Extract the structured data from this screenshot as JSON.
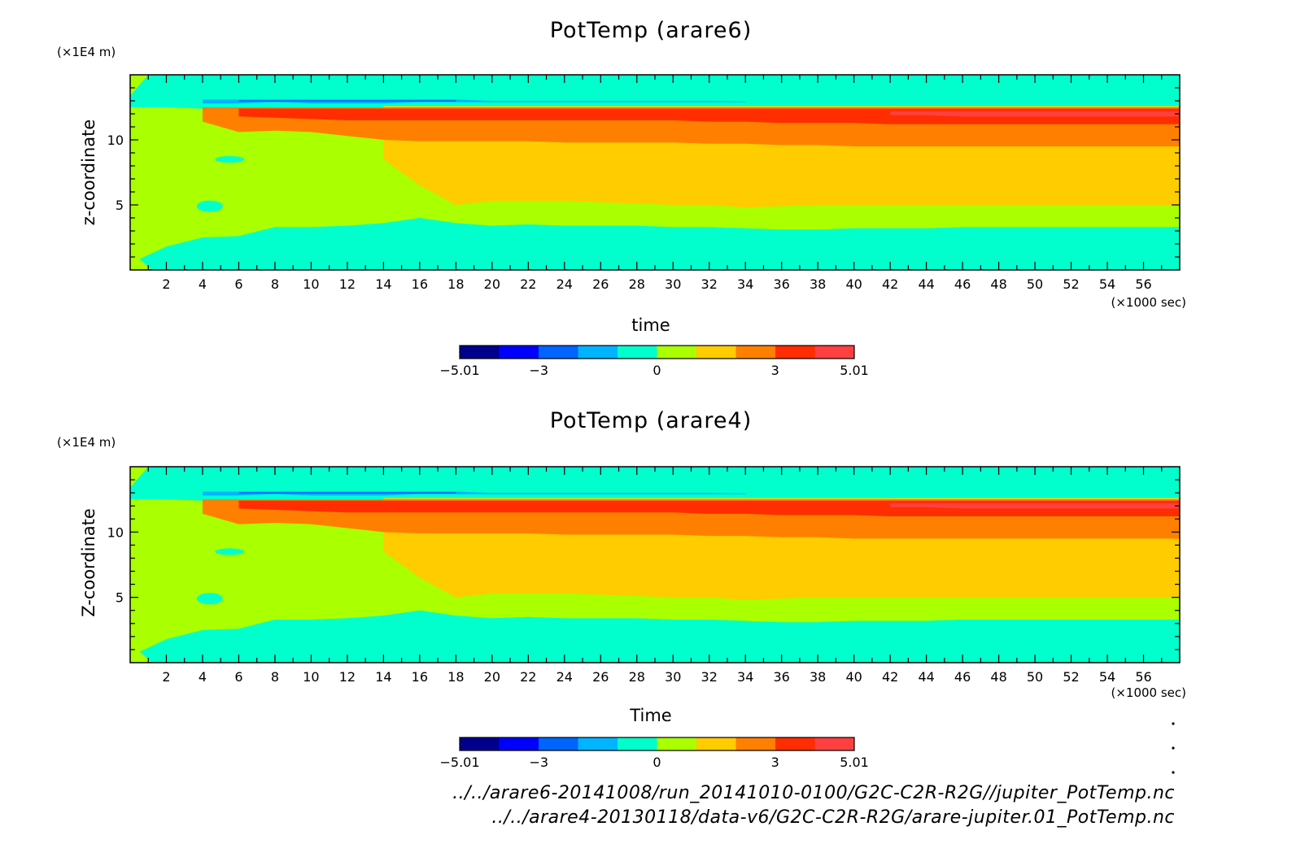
{
  "chart_data": [
    {
      "type": "heatmap",
      "title": "PotTemp (arare6)",
      "xlabel": "time",
      "ylabel": "z-coordinate",
      "x_unit_label": "(×1000 sec)",
      "y_unit_label": "(×1E4 m)",
      "xlim": [
        0,
        58
      ],
      "ylim": [
        0,
        15
      ],
      "x_ticks": [
        2,
        4,
        6,
        8,
        10,
        12,
        14,
        16,
        18,
        20,
        22,
        24,
        26,
        28,
        30,
        32,
        34,
        36,
        38,
        40,
        42,
        44,
        46,
        48,
        50,
        52,
        54,
        56
      ],
      "y_ticks": [
        5,
        10
      ],
      "colorbar": {
        "min": -5.01,
        "max": 5.01,
        "tick_values": [
          -5.01,
          -3,
          0,
          3,
          5.01
        ],
        "tick_labels": [
          "−5.01",
          "−3",
          "0",
          "3",
          "5.01"
        ],
        "colors": [
          "#00008c",
          "#0000ff",
          "#0064ff",
          "#00b4ff",
          "#00ffcc",
          "#aaff00",
          "#ffcc00",
          "#ff8000",
          "#ff2d00",
          "#ff4040"
        ]
      },
      "layers": [
        {
          "level": 0,
          "min": -1,
          "max": 0,
          "color": "#00ffcc",
          "z_top": [
            0.5,
            1.8,
            2.5,
            2.6,
            3.3,
            3.3,
            3.4,
            3.6,
            4.0,
            3.6,
            3.4,
            3.5,
            3.4,
            3.4,
            3.4,
            3.3,
            3.3,
            3.2,
            3.1,
            3.1,
            3.2,
            3.2,
            3.2,
            3.3,
            3.3,
            3.3,
            3.3,
            3.3,
            3.3,
            3.3
          ]
        },
        {
          "level": 1,
          "min": 0,
          "max": 1,
          "color": "#aaff00",
          "z_top": [
            12.5,
            12.5,
            12.4,
            12.3,
            12.2,
            12.2,
            12.2,
            12.3,
            12.3,
            12.3,
            12.3,
            12.4,
            12.4,
            12.4,
            12.4,
            12.4,
            12.4,
            12.4,
            12.5,
            12.5,
            12.5,
            12.5,
            12.5,
            12.5,
            12.5,
            12.5,
            12.5,
            12.5,
            12.5,
            12.5
          ]
        },
        {
          "level": 2,
          "min": 1,
          "max": 2,
          "color": "#ffcc00",
          "z_bottom": [
            99,
            99,
            99,
            99,
            99,
            99,
            99,
            8.5,
            6.5,
            5.0,
            5.3,
            5.3,
            5.3,
            5.2,
            5.1,
            5.0,
            5.0,
            4.8,
            4.9,
            5.0,
            5.0,
            5.0,
            5.0,
            5.0,
            5.0,
            5.0,
            5.0,
            5.0,
            5.0,
            5.0
          ],
          "z_top": [
            99,
            99,
            12.6,
            12.6,
            12.6,
            12.6,
            12.6,
            12.6,
            12.6,
            12.6,
            12.6,
            12.6,
            12.6,
            12.6,
            12.6,
            12.6,
            12.6,
            12.6,
            12.6,
            12.6,
            12.6,
            12.6,
            12.6,
            12.6,
            12.6,
            12.6,
            12.6,
            12.6,
            12.6,
            12.6
          ]
        },
        {
          "level": 3,
          "min": 2,
          "max": 3,
          "color": "#ff8000",
          "z_bottom": [
            99,
            99,
            11.4,
            10.6,
            10.7,
            10.6,
            10.3,
            10.0,
            9.9,
            9.9,
            9.9,
            9.9,
            9.8,
            9.8,
            9.8,
            9.8,
            9.7,
            9.7,
            9.6,
            9.6,
            9.5,
            9.5,
            9.5,
            9.5,
            9.5,
            9.5,
            9.5,
            9.5,
            9.5,
            9.5
          ],
          "z_top": [
            99,
            99,
            12.5,
            12.5,
            12.5,
            12.5,
            12.5,
            12.5,
            12.5,
            12.5,
            12.5,
            12.5,
            12.5,
            12.5,
            12.5,
            12.5,
            12.5,
            12.5,
            12.5,
            12.5,
            12.5,
            12.5,
            12.5,
            12.5,
            12.5,
            12.5,
            12.5,
            12.5,
            12.5,
            12.5
          ]
        },
        {
          "level": 4,
          "min": 3,
          "max": 4,
          "color": "#ff2d00",
          "z_bottom": [
            99,
            99,
            99,
            11.8,
            11.7,
            11.6,
            11.5,
            11.5,
            11.5,
            11.5,
            11.5,
            11.5,
            11.5,
            11.5,
            11.5,
            11.5,
            11.4,
            11.4,
            11.3,
            11.3,
            11.3,
            11.2,
            11.2,
            11.2,
            11.2,
            11.2,
            11.2,
            11.2,
            11.2,
            11.2
          ],
          "z_top": [
            99,
            99,
            99,
            12.4,
            12.4,
            12.4,
            12.4,
            12.4,
            12.4,
            12.4,
            12.4,
            12.4,
            12.4,
            12.4,
            12.4,
            12.4,
            12.4,
            12.4,
            12.4,
            12.4,
            12.4,
            12.4,
            12.4,
            12.4,
            12.4,
            12.4,
            12.4,
            12.4,
            12.4,
            12.4
          ]
        },
        {
          "level": 5,
          "min": 4,
          "max": 5.01,
          "color": "#ff4040",
          "z_bottom": [
            99,
            99,
            99,
            99,
            99,
            99,
            99,
            99,
            99,
            99,
            99,
            99,
            99,
            99,
            99,
            99,
            99,
            99,
            99,
            99,
            99,
            11.9,
            11.9,
            11.8,
            11.8,
            11.8,
            11.8,
            11.8,
            11.8,
            11.8
          ],
          "z_top": [
            99,
            99,
            99,
            99,
            99,
            99,
            99,
            99,
            99,
            99,
            99,
            99,
            99,
            99,
            99,
            99,
            99,
            99,
            99,
            99,
            99,
            12.2,
            12.2,
            12.2,
            12.2,
            12.2,
            12.2,
            12.2,
            12.2,
            12.2
          ]
        },
        {
          "level": -1,
          "min": -2,
          "max": -1,
          "color": "#00b4ff",
          "z_bottom": [
            99,
            99,
            12.8,
            12.8,
            12.9,
            12.8,
            12.8,
            12.8,
            12.9,
            12.9,
            12.9,
            12.9,
            12.9,
            12.9,
            12.9,
            12.9,
            12.9,
            12.9,
            99,
            99,
            99,
            99,
            99,
            99,
            99,
            99,
            99,
            99,
            99,
            99
          ],
          "z_top": [
            99,
            99,
            13.1,
            13.1,
            13.1,
            13.1,
            13.1,
            13.1,
            13.1,
            13.1,
            13.0,
            13.0,
            13.0,
            13.0,
            13.0,
            13.0,
            13.0,
            12.95,
            99,
            99,
            99,
            99,
            99,
            99,
            99,
            99,
            99,
            99,
            99,
            99
          ]
        },
        {
          "level": -2,
          "min": -3,
          "max": -2,
          "color": "#0064ff",
          "z_bottom": [
            99,
            99,
            99,
            12.95,
            12.95,
            12.95,
            12.95,
            12.95,
            12.95,
            12.95,
            99,
            99,
            99,
            99,
            99,
            99,
            99,
            99,
            99,
            99,
            99,
            99,
            99,
            99,
            99,
            99,
            99,
            99,
            99,
            99
          ],
          "z_top": [
            99,
            99,
            99,
            13.05,
            13.05,
            13.05,
            13.05,
            13.05,
            13.05,
            13.05,
            99,
            99,
            99,
            99,
            99,
            99,
            99,
            99,
            99,
            99,
            99,
            99,
            99,
            99,
            99,
            99,
            99,
            99,
            99,
            99
          ]
        }
      ]
    },
    {
      "type": "heatmap",
      "title": "PotTemp (arare4)",
      "xlabel": "Time",
      "ylabel": "Z-coordinate",
      "x_unit_label": "(×1000 sec)",
      "y_unit_label": "(×1E4 m)",
      "xlim": [
        0,
        58
      ],
      "ylim": [
        0,
        15
      ],
      "x_ticks": [
        2,
        4,
        6,
        8,
        10,
        12,
        14,
        16,
        18,
        20,
        22,
        24,
        26,
        28,
        30,
        32,
        34,
        36,
        38,
        40,
        42,
        44,
        46,
        48,
        50,
        52,
        54,
        56
      ],
      "y_ticks": [
        5,
        10
      ],
      "colorbar": {
        "min": -5.01,
        "max": 5.01,
        "tick_values": [
          -5.01,
          -3,
          0,
          3,
          5.01
        ],
        "tick_labels": [
          "−5.01",
          "−3",
          "0",
          "3",
          "5.01"
        ],
        "colors": [
          "#00008c",
          "#0000ff",
          "#0064ff",
          "#00b4ff",
          "#00ffcc",
          "#aaff00",
          "#ffcc00",
          "#ff8000",
          "#ff2d00",
          "#ff4040"
        ]
      },
      "layers": [
        {
          "level": 0,
          "min": -1,
          "max": 0,
          "color": "#00ffcc",
          "z_top": [
            0.5,
            1.8,
            2.5,
            2.6,
            3.3,
            3.3,
            3.4,
            3.6,
            4.0,
            3.6,
            3.4,
            3.5,
            3.4,
            3.4,
            3.4,
            3.3,
            3.3,
            3.2,
            3.1,
            3.1,
            3.2,
            3.2,
            3.2,
            3.3,
            3.3,
            3.3,
            3.3,
            3.3,
            3.3,
            3.3
          ]
        },
        {
          "level": 1,
          "min": 0,
          "max": 1,
          "color": "#aaff00",
          "z_top": [
            12.5,
            12.5,
            12.4,
            12.3,
            12.2,
            12.2,
            12.2,
            12.3,
            12.3,
            12.3,
            12.3,
            12.4,
            12.4,
            12.4,
            12.4,
            12.4,
            12.4,
            12.4,
            12.5,
            12.5,
            12.5,
            12.5,
            12.5,
            12.5,
            12.5,
            12.5,
            12.5,
            12.5,
            12.5,
            12.5
          ]
        },
        {
          "level": 2,
          "min": 1,
          "max": 2,
          "color": "#ffcc00",
          "z_bottom": [
            99,
            99,
            99,
            99,
            99,
            99,
            99,
            8.5,
            6.5,
            5.0,
            5.3,
            5.3,
            5.3,
            5.2,
            5.1,
            5.0,
            5.0,
            4.8,
            4.9,
            5.0,
            5.0,
            5.0,
            5.0,
            5.0,
            5.0,
            5.0,
            5.0,
            5.0,
            5.0,
            5.0
          ],
          "z_top": [
            99,
            99,
            12.6,
            12.6,
            12.6,
            12.6,
            12.6,
            12.6,
            12.6,
            12.6,
            12.6,
            12.6,
            12.6,
            12.6,
            12.6,
            12.6,
            12.6,
            12.6,
            12.6,
            12.6,
            12.6,
            12.6,
            12.6,
            12.6,
            12.6,
            12.6,
            12.6,
            12.6,
            12.6,
            12.6
          ]
        },
        {
          "level": 3,
          "min": 2,
          "max": 3,
          "color": "#ff8000",
          "z_bottom": [
            99,
            99,
            11.4,
            10.6,
            10.7,
            10.6,
            10.3,
            10.0,
            9.9,
            9.9,
            9.9,
            9.9,
            9.8,
            9.8,
            9.8,
            9.8,
            9.7,
            9.7,
            9.6,
            9.6,
            9.5,
            9.5,
            9.5,
            9.5,
            9.5,
            9.5,
            9.5,
            9.5,
            9.5,
            9.5
          ],
          "z_top": [
            99,
            99,
            12.5,
            12.5,
            12.5,
            12.5,
            12.5,
            12.5,
            12.5,
            12.5,
            12.5,
            12.5,
            12.5,
            12.5,
            12.5,
            12.5,
            12.5,
            12.5,
            12.5,
            12.5,
            12.5,
            12.5,
            12.5,
            12.5,
            12.5,
            12.5,
            12.5,
            12.5,
            12.5,
            12.5
          ]
        },
        {
          "level": 4,
          "min": 3,
          "max": 4,
          "color": "#ff2d00",
          "z_bottom": [
            99,
            99,
            99,
            11.8,
            11.7,
            11.6,
            11.5,
            11.5,
            11.5,
            11.5,
            11.5,
            11.5,
            11.5,
            11.5,
            11.5,
            11.5,
            11.4,
            11.4,
            11.3,
            11.3,
            11.3,
            11.2,
            11.2,
            11.2,
            11.2,
            11.2,
            11.2,
            11.2,
            11.2,
            11.2
          ],
          "z_top": [
            99,
            99,
            99,
            12.4,
            12.4,
            12.4,
            12.4,
            12.4,
            12.4,
            12.4,
            12.4,
            12.4,
            12.4,
            12.4,
            12.4,
            12.4,
            12.4,
            12.4,
            12.4,
            12.4,
            12.4,
            12.4,
            12.4,
            12.4,
            12.4,
            12.4,
            12.4,
            12.4,
            12.4,
            12.4
          ]
        },
        {
          "level": 5,
          "min": 4,
          "max": 5.01,
          "color": "#ff4040",
          "z_bottom": [
            99,
            99,
            99,
            99,
            99,
            99,
            99,
            99,
            99,
            99,
            99,
            99,
            99,
            99,
            99,
            99,
            99,
            99,
            99,
            99,
            99,
            11.9,
            11.9,
            11.8,
            11.8,
            11.8,
            11.8,
            11.8,
            11.8,
            11.8
          ],
          "z_top": [
            99,
            99,
            99,
            99,
            99,
            99,
            99,
            99,
            99,
            99,
            99,
            99,
            99,
            99,
            99,
            99,
            99,
            99,
            99,
            99,
            99,
            12.2,
            12.2,
            12.2,
            12.2,
            12.2,
            12.2,
            12.2,
            12.2,
            12.2
          ]
        },
        {
          "level": -1,
          "min": -2,
          "max": -1,
          "color": "#00b4ff",
          "z_bottom": [
            99,
            99,
            12.8,
            12.8,
            12.9,
            12.8,
            12.8,
            12.8,
            12.9,
            12.9,
            12.9,
            12.9,
            12.9,
            12.9,
            12.9,
            12.9,
            12.9,
            12.9,
            99,
            99,
            99,
            99,
            99,
            99,
            99,
            99,
            99,
            99,
            99,
            99
          ],
          "z_top": [
            99,
            99,
            13.1,
            13.1,
            13.1,
            13.1,
            13.1,
            13.1,
            13.1,
            13.1,
            13.0,
            13.0,
            13.0,
            13.0,
            13.0,
            13.0,
            13.0,
            12.95,
            99,
            99,
            99,
            99,
            99,
            99,
            99,
            99,
            99,
            99,
            99,
            99
          ]
        },
        {
          "level": -2,
          "min": -3,
          "max": -2,
          "color": "#0064ff",
          "z_bottom": [
            99,
            99,
            99,
            12.95,
            12.95,
            12.95,
            12.95,
            12.95,
            12.95,
            12.95,
            99,
            99,
            99,
            99,
            99,
            99,
            99,
            99,
            99,
            99,
            99,
            99,
            99,
            99,
            99,
            99,
            99,
            99,
            99,
            99
          ],
          "z_top": [
            99,
            99,
            99,
            13.05,
            13.05,
            13.05,
            13.05,
            13.05,
            13.05,
            13.05,
            99,
            99,
            99,
            99,
            99,
            99,
            99,
            99,
            99,
            99,
            99,
            99,
            99,
            99,
            99,
            99,
            99,
            99,
            99,
            99
          ]
        }
      ]
    }
  ],
  "footer": {
    "file1": "../../arare6-20141008/run_20141010-0100/G2C-C2R-R2G//jupiter_PotTemp.nc",
    "file2": "../../arare4-20130118/data-v6/G2C-C2R-R2G/arare-jupiter.01_PotTemp.nc"
  }
}
